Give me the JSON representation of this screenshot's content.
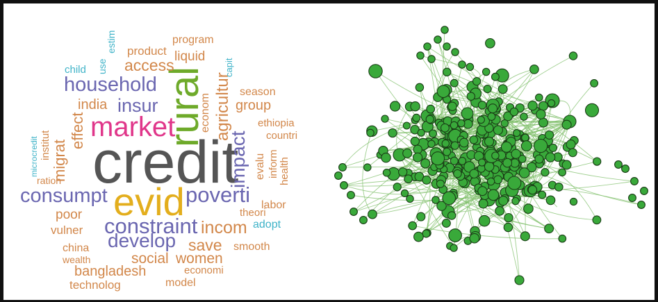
{
  "colors": {
    "orange": "#d2874a",
    "purple": "#6a66b0",
    "teal": "#3fb3c8",
    "gray": "#555555",
    "gold": "#e3ae1d",
    "magenta": "#e0368a",
    "green": "#6eaa2a",
    "node_fill": "#39a93a",
    "node_stroke": "#1a3d16",
    "edge": "#7fbf6a"
  },
  "wordcloud": {
    "words": [
      {
        "text": "credit",
        "color": "gray"
      },
      {
        "text": "evid",
        "color": "gold"
      },
      {
        "text": "rural",
        "color": "green"
      },
      {
        "text": "market",
        "color": "magenta"
      },
      {
        "text": "household",
        "color": "purple"
      },
      {
        "text": "insur",
        "color": "purple"
      },
      {
        "text": "poverti",
        "color": "purple"
      },
      {
        "text": "consumpt",
        "color": "purple"
      },
      {
        "text": "constraint",
        "color": "purple"
      },
      {
        "text": "develop",
        "color": "purple"
      },
      {
        "text": "impact",
        "color": "purple"
      },
      {
        "text": "incom",
        "color": "orange"
      },
      {
        "text": "agricultur",
        "color": "orange"
      },
      {
        "text": "access",
        "color": "orange"
      },
      {
        "text": "save",
        "color": "orange"
      },
      {
        "text": "social",
        "color": "orange"
      },
      {
        "text": "women",
        "color": "orange"
      },
      {
        "text": "bangladesh",
        "color": "orange"
      },
      {
        "text": "migrat",
        "color": "orange"
      },
      {
        "text": "effect",
        "color": "orange"
      },
      {
        "text": "india",
        "color": "orange"
      },
      {
        "text": "group",
        "color": "orange"
      },
      {
        "text": "poor",
        "color": "orange"
      },
      {
        "text": "vulner",
        "color": "orange"
      },
      {
        "text": "china",
        "color": "orange"
      },
      {
        "text": "wealth",
        "color": "orange"
      },
      {
        "text": "technolog",
        "color": "orange"
      },
      {
        "text": "model",
        "color": "orange"
      },
      {
        "text": "economi",
        "color": "orange"
      },
      {
        "text": "smooth",
        "color": "orange"
      },
      {
        "text": "labor",
        "color": "orange"
      },
      {
        "text": "theori",
        "color": "orange"
      },
      {
        "text": "product",
        "color": "orange"
      },
      {
        "text": "liquid",
        "color": "orange"
      },
      {
        "text": "program",
        "color": "orange"
      },
      {
        "text": "season",
        "color": "orange"
      },
      {
        "text": "ethiopia",
        "color": "orange"
      },
      {
        "text": "countri",
        "color": "orange"
      },
      {
        "text": "econom",
        "color": "orange"
      },
      {
        "text": "evalu",
        "color": "orange"
      },
      {
        "text": "inform",
        "color": "orange"
      },
      {
        "text": "health",
        "color": "orange"
      },
      {
        "text": "ration",
        "color": "orange"
      },
      {
        "text": "institut",
        "color": "orange"
      },
      {
        "text": "adopt",
        "color": "teal"
      },
      {
        "text": "microcredit",
        "color": "teal"
      },
      {
        "text": "child",
        "color": "teal"
      },
      {
        "text": "use",
        "color": "teal"
      },
      {
        "text": "estim",
        "color": "teal"
      },
      {
        "text": "capit",
        "color": "teal"
      }
    ]
  }
}
